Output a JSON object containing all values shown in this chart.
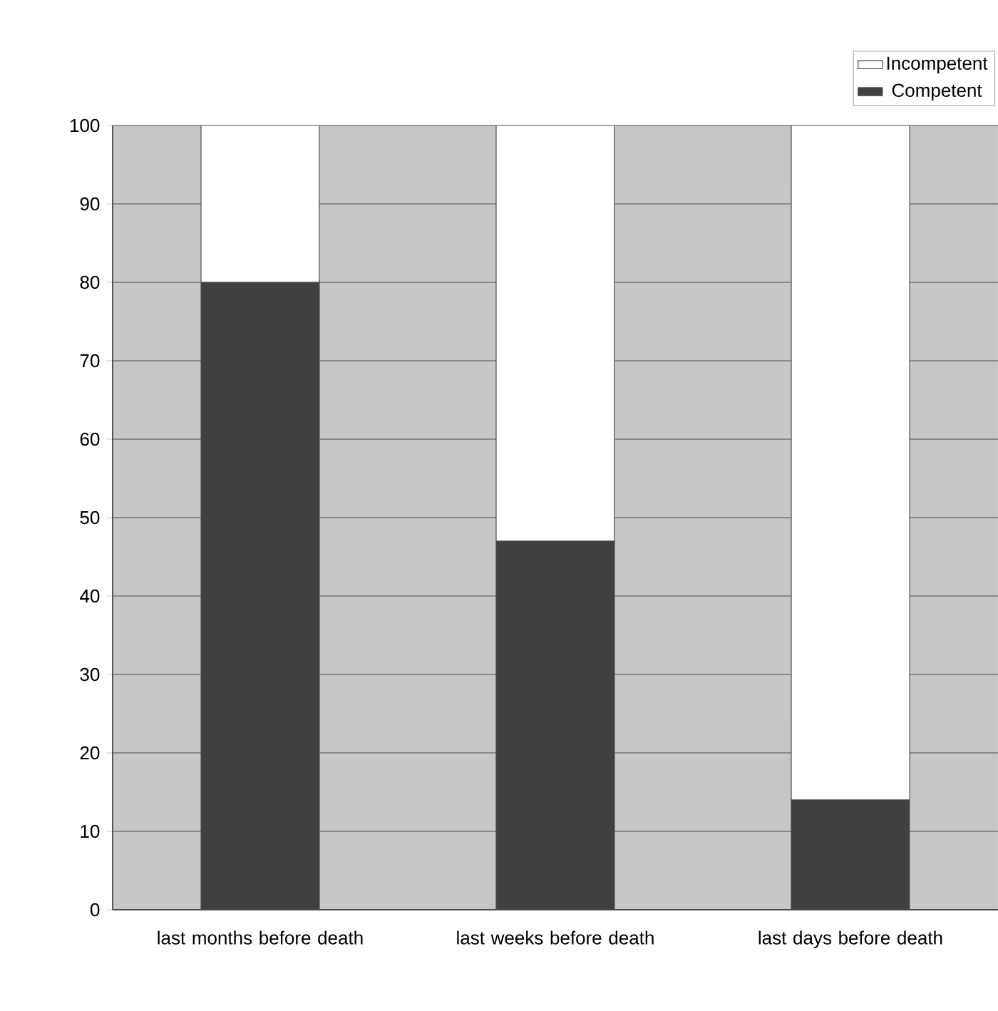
{
  "chart_data": {
    "type": "bar",
    "stacked": true,
    "categories": [
      "last months before death",
      "last weeks before death",
      "last days before death"
    ],
    "series": [
      {
        "name": "Competent",
        "color": "#404040",
        "values": [
          80,
          47,
          14
        ]
      },
      {
        "name": "Incompetent",
        "color": "#ffffff",
        "values": [
          20,
          53,
          86
        ]
      }
    ],
    "ylim": [
      0,
      100
    ],
    "yticks": [
      0,
      10,
      20,
      30,
      40,
      50,
      60,
      70,
      80,
      90,
      100
    ],
    "grid": "y",
    "legend": "top right"
  }
}
